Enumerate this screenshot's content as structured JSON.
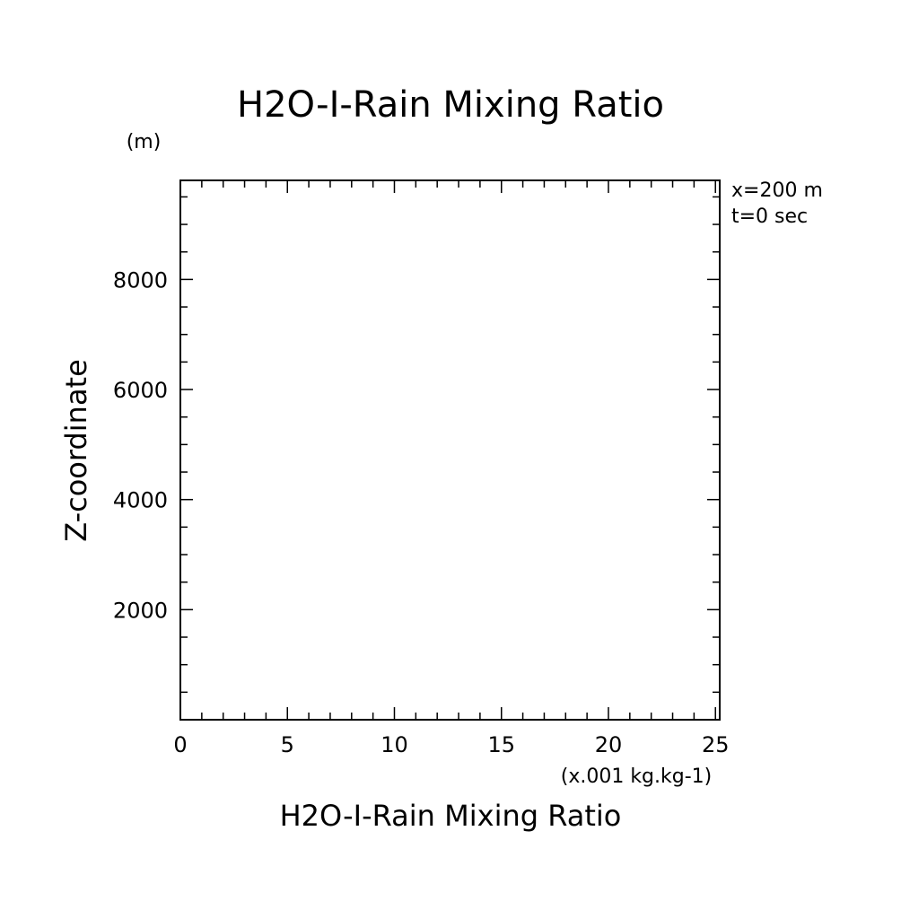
{
  "chart_data": {
    "type": "line",
    "title": "H2O-I-Rain Mixing Ratio",
    "xlabel": "H2O-I-Rain Mixing Ratio",
    "x_units": "(x.001 kg.kg-1)",
    "ylabel": "Z-coordinate",
    "y_units": "(m)",
    "annotations": [
      "x=200 m",
      "t=0 sec"
    ],
    "xlim": [
      0,
      25.2
    ],
    "ylim": [
      0,
      9800
    ],
    "x_major_ticks": [
      0,
      5,
      10,
      15,
      20,
      25
    ],
    "x_tick_labels": [
      "0",
      "5",
      "10",
      "15",
      "20",
      "25"
    ],
    "x_minor_step": 1,
    "y_major_ticks": [
      2000,
      4000,
      6000,
      8000
    ],
    "y_tick_labels": [
      "2000",
      "4000",
      "6000",
      "8000"
    ],
    "y_minor_step": 500,
    "grid": false,
    "series": []
  }
}
